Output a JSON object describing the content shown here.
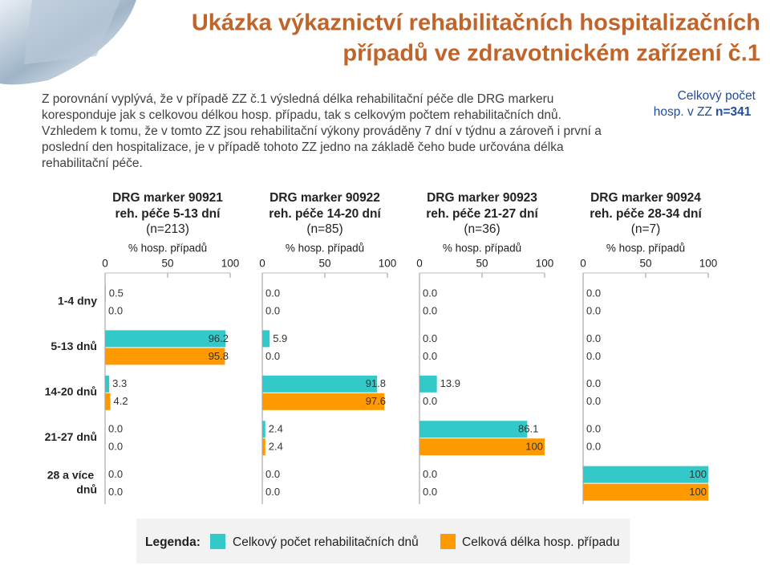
{
  "header": {
    "title_lines": [
      "Ukázka výkaznictví  rehabilitačních hospitalizačních",
      "případů ve zdravotnickém zařízení č.1"
    ]
  },
  "paragraph_lines": [
    "Z porovnání vyplývá, že v případě ZZ č.1 výsledná délka rehabilitační péče dle DRG markeru",
    "koresponduje jak s celkovou délkou hosp. případu, tak s celkovým počtem rehabilitačních dnů.",
    "Vzhledem k tomu, že v tomto ZZ jsou rehabilitační výkony prováděny 7 dní v týdnu a zároveň i první a",
    "poslední den hospitalizace, je v případě tohoto ZZ jedno na základě čeho bude určována délka",
    "rehabilitační péče."
  ],
  "side_note": {
    "lines": [
      "Celkový počet",
      "hosp. v ZZ"
    ],
    "emphasis": "n=341"
  },
  "legend": {
    "title": "Legenda:"
  },
  "chart_data": [
    {
      "type": "hbar",
      "title": "DRG marker 90921",
      "subtitle": "reh. péče 5-13 dní",
      "note": "(n=213)",
      "x_label": "% hosp. případů",
      "xlim": [
        0,
        100
      ],
      "xticks": [
        0,
        50,
        100
      ],
      "categories": [
        "1-4 dny",
        "5-13 dnů",
        "14-20 dnů",
        "21-27 dnů",
        "28 a více dnů"
      ],
      "series": [
        {
          "name": "Celkový počet rehabilitačních dnů",
          "color": "#33c9c9",
          "values": [
            0.5,
            96.2,
            3.3,
            0,
            0
          ],
          "value_labels": [
            "0.5",
            "96.2",
            "3.3",
            "0.0",
            "0.0"
          ]
        },
        {
          "name": "Celková délka hosp. případu",
          "color": "#ff9900",
          "values": [
            0,
            95.8,
            4.2,
            0,
            0
          ],
          "value_labels": [
            "0.0",
            "95.8",
            "4.2",
            "0.0",
            "0.0"
          ]
        }
      ]
    },
    {
      "type": "hbar",
      "title": "DRG marker 90922",
      "subtitle": "reh. péče 14-20 dní",
      "note": "(n=85)",
      "x_label": "% hosp. případů",
      "xlim": [
        0,
        100
      ],
      "xticks": [
        0,
        50,
        100
      ],
      "series": [
        {
          "color": "#33c9c9",
          "values": [
            0,
            5.9,
            91.8,
            2.4,
            0
          ],
          "value_labels": [
            "0.0",
            "5.9",
            "91.8",
            "2.4",
            "0.0"
          ]
        },
        {
          "color": "#ff9900",
          "values": [
            0,
            0,
            97.6,
            2.4,
            0
          ],
          "value_labels": [
            "0.0",
            "0.0",
            "97.6",
            "2.4",
            "0.0"
          ]
        }
      ]
    },
    {
      "type": "hbar",
      "title": "DRG marker 90923",
      "subtitle": "reh. péče 21-27 dní",
      "note": "(n=36)",
      "x_label": "% hosp. případů",
      "xlim": [
        0,
        100
      ],
      "xticks": [
        0,
        50,
        100
      ],
      "series": [
        {
          "color": "#33c9c9",
          "values": [
            0,
            0,
            13.9,
            86.1,
            0
          ],
          "value_labels": [
            "0.0",
            "0.0",
            "13.9",
            "86.1",
            "0.0"
          ]
        },
        {
          "color": "#ff9900",
          "values": [
            0,
            0,
            0,
            100,
            0
          ],
          "value_labels": [
            "0.0",
            "0.0",
            "0.0",
            "100",
            "0.0"
          ]
        }
      ]
    },
    {
      "type": "hbar",
      "title": "DRG marker 90924",
      "subtitle": "reh. péče 28-34 dní",
      "note": "(n=7)",
      "x_label": "% hosp. případů",
      "xlim": [
        0,
        100
      ],
      "xticks": [
        0,
        50,
        100
      ],
      "series": [
        {
          "color": "#33c9c9",
          "values": [
            0,
            0,
            0,
            0,
            100
          ],
          "value_labels": [
            "0.0",
            "0.0",
            "0.0",
            "0.0",
            "100"
          ]
        },
        {
          "color": "#ff9900",
          "values": [
            0,
            0,
            0,
            0,
            100
          ],
          "value_labels": [
            "0.0",
            "0.0",
            "0.0",
            "0.0",
            "100"
          ]
        }
      ]
    }
  ]
}
